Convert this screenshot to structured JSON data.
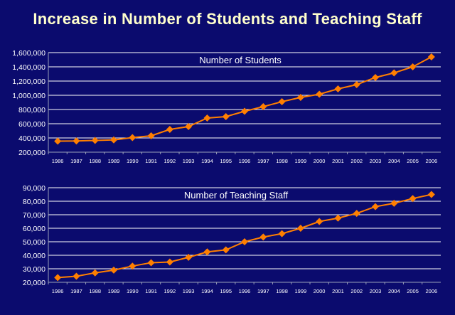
{
  "page": {
    "title": "Increase in Number of Students and Teaching Staff"
  },
  "colors": {
    "background": "#0b0b6e",
    "title": "#ffffcc",
    "gridline": "#ffffff",
    "series": "#ff7f00",
    "text": "#ffffff"
  },
  "chart_data": [
    {
      "type": "line",
      "title": "Number of Students",
      "xlabel": "",
      "ylabel": "",
      "x": [
        "1986",
        "1987",
        "1988",
        "1989",
        "1990",
        "1991",
        "1992",
        "1993",
        "1994",
        "1995",
        "1996",
        "1997",
        "1998",
        "1999",
        "2000",
        "2001",
        "2002",
        "2003",
        "2004",
        "2005",
        "2006"
      ],
      "y_ticks": [
        "200,000",
        "400,000",
        "600,000",
        "800,000",
        "1,000,000",
        "1,200,000",
        "1,400,000",
        "1,600,000"
      ],
      "ylim": [
        200000,
        1600000
      ],
      "grid": true,
      "marker": "diamond",
      "series": [
        {
          "values": [
            355000,
            357000,
            365000,
            372000,
            405000,
            430000,
            520000,
            560000,
            680000,
            700000,
            775000,
            840000,
            910000,
            970000,
            1015000,
            1090000,
            1150000,
            1250000,
            1315000,
            1400000,
            1540000
          ]
        }
      ]
    },
    {
      "type": "line",
      "title": "Number of Teaching Staff",
      "xlabel": "",
      "ylabel": "",
      "x": [
        "1986",
        "1987",
        "1988",
        "1989",
        "1990",
        "1991",
        "1992",
        "1993",
        "1994",
        "1995",
        "1996",
        "1997",
        "1998",
        "1999",
        "2000",
        "2001",
        "2002",
        "2003",
        "2004",
        "2005",
        "2006"
      ],
      "y_ticks": [
        "20,000",
        "30,000",
        "40,000",
        "50,000",
        "60,000",
        "70,000",
        "80,000",
        "90,000"
      ],
      "ylim": [
        20000,
        90000
      ],
      "grid": true,
      "marker": "diamond",
      "series": [
        {
          "values": [
            23500,
            24500,
            27000,
            29000,
            32000,
            34500,
            35000,
            38500,
            42500,
            44000,
            50000,
            53500,
            56000,
            60000,
            65000,
            67500,
            71000,
            76000,
            78500,
            82000,
            85000
          ]
        }
      ]
    }
  ]
}
